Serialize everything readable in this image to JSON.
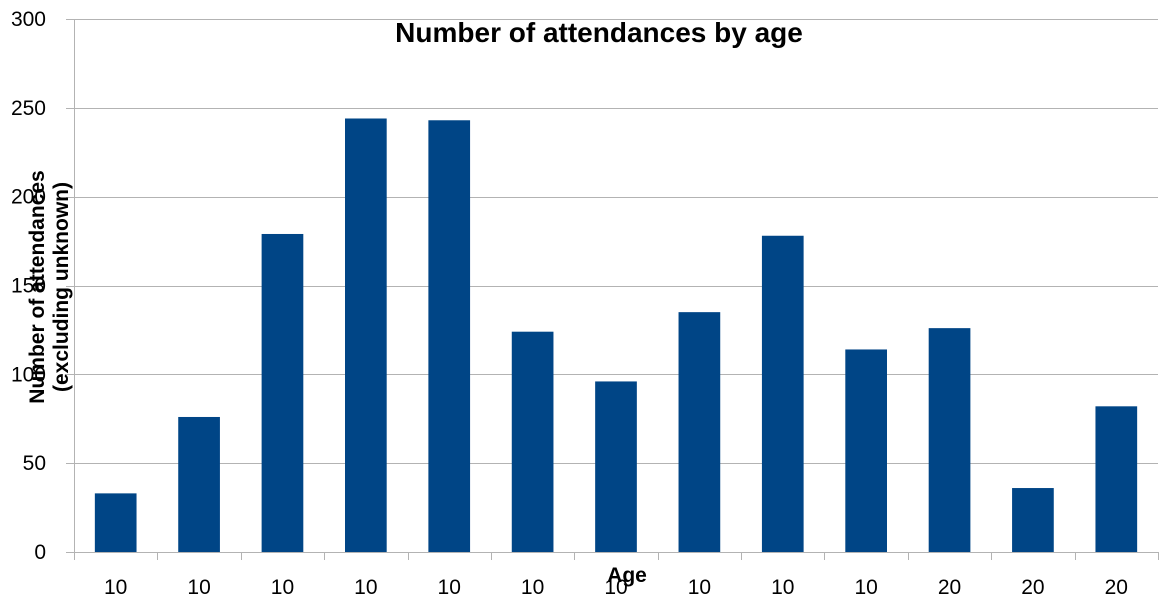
{
  "chart_data": {
    "type": "bar",
    "title": "Number of attendances by age",
    "xlabel": "Age",
    "ylabel_lines": [
      "Number of attendances",
      "(excluding unknown)"
    ],
    "categories": [
      "10",
      "10",
      "10",
      "10",
      "10",
      "10",
      "10",
      "10",
      "10",
      "10",
      "20",
      "20",
      "20"
    ],
    "values": [
      33,
      76,
      179,
      244,
      243,
      124,
      96,
      135,
      178,
      114,
      126,
      36,
      82
    ],
    "ylim": [
      0,
      300
    ],
    "yticks": [
      0,
      50,
      100,
      150,
      200,
      250,
      300
    ],
    "grid": true,
    "legend": "none",
    "bar_color": "#004586",
    "grid_color": "#b3b3b3"
  }
}
